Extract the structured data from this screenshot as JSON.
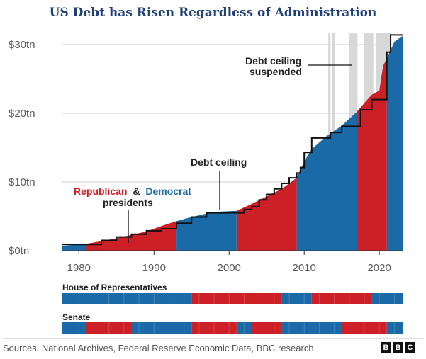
{
  "title": "US Debt has Risen Regardless of Administration",
  "source": "Sources: National Archives, Federal Reserve Economic Data, BBC research",
  "logo_letters": [
    "B",
    "B",
    "C"
  ],
  "colors": {
    "republican": "#cc1f26",
    "democrat": "#1b6aa8",
    "limit": "#111111",
    "suspended": "#d8d8d8",
    "grid": "#cccccc"
  },
  "annotations": {
    "party_rep": "Republican",
    "party_amp": "&",
    "party_dem": "Democrat",
    "party_line2": "presidents",
    "debt_ceiling": "Debt ceiling",
    "suspended_line1": "Debt ceiling",
    "suspended_line2": "suspended"
  },
  "chart_data": {
    "type": "area",
    "title": "US Debt has Risen Regardless of Administration",
    "xlabel": "",
    "ylabel": "",
    "xlim": [
      1977.8,
      2023.1
    ],
    "ylim": [
      0,
      31.5
    ],
    "x_ticks": [
      1980,
      1990,
      2000,
      2010,
      2020
    ],
    "x_tick_labels": [
      "1980",
      "1990",
      "2000",
      "2010",
      "2020"
    ],
    "y_ticks": [
      0,
      10,
      20,
      30
    ],
    "y_tick_labels": [
      "$0tn",
      "$10tn",
      "$20tn",
      "$30tn"
    ],
    "grid": true,
    "debt": {
      "x": [
        1977.8,
        1979,
        1981,
        1983,
        1985,
        1987,
        1989,
        1991,
        1993,
        1995,
        1997,
        1999,
        2001,
        2003,
        2005,
        2007,
        2009,
        2010,
        2011,
        2013,
        2015,
        2017,
        2018,
        2019,
        2020,
        2020.5,
        2021,
        2022,
        2023
      ],
      "y": [
        0.7,
        0.8,
        1.0,
        1.4,
        1.8,
        2.3,
        2.8,
        3.6,
        4.3,
        4.9,
        5.4,
        5.7,
        5.8,
        6.8,
        7.9,
        9.0,
        10.6,
        13.0,
        14.8,
        16.7,
        18.2,
        20.2,
        21.5,
        22.7,
        23.3,
        26.9,
        28.0,
        30.4,
        31.2
      ]
    },
    "presidents": [
      {
        "start": 1977.8,
        "end": 1981.0,
        "party": "Democrat"
      },
      {
        "start": 1981.0,
        "end": 1993.0,
        "party": "Republican"
      },
      {
        "start": 1993.0,
        "end": 2001.0,
        "party": "Democrat"
      },
      {
        "start": 2001.0,
        "end": 2009.0,
        "party": "Republican"
      },
      {
        "start": 2009.0,
        "end": 2017.0,
        "party": "Democrat"
      },
      {
        "start": 2017.0,
        "end": 2021.0,
        "party": "Republican"
      },
      {
        "start": 2021.0,
        "end": 2023.1,
        "party": "Democrat"
      }
    ],
    "debt_ceiling": {
      "x": [
        1977.8,
        1983,
        1985,
        1987,
        1989,
        1991,
        1993,
        1995,
        1997,
        2002,
        2003,
        2004,
        2005,
        2006,
        2007,
        2008,
        2009,
        2009.5,
        2010,
        2011,
        2013.5,
        2015,
        2017.5,
        2019,
        2021,
        2021.5,
        2022.2
      ],
      "y": [
        0.9,
        1.5,
        2.0,
        2.4,
        2.9,
        3.2,
        4.0,
        4.9,
        5.5,
        6.0,
        6.4,
        7.4,
        8.2,
        9.0,
        9.8,
        10.6,
        11.3,
        12.1,
        14.3,
        16.4,
        17.2,
        18.1,
        20.5,
        22.0,
        28.9,
        31.4,
        31.4
      ]
    },
    "suspended_periods": [
      [
        2013.2,
        2013.5
      ],
      [
        2013.7,
        2014.1
      ],
      [
        2016.0,
        2017.1
      ],
      [
        2018.0,
        2019.2
      ],
      [
        2019.6,
        2021.6
      ]
    ],
    "house_of_representatives": {
      "label": "House of Representatives",
      "segments": [
        {
          "start": 1977.8,
          "end": 1995.0,
          "party": "Democrat"
        },
        {
          "start": 1995.0,
          "end": 2007.0,
          "party": "Republican"
        },
        {
          "start": 2007.0,
          "end": 2011.0,
          "party": "Democrat"
        },
        {
          "start": 2011.0,
          "end": 2019.0,
          "party": "Republican"
        },
        {
          "start": 2019.0,
          "end": 2023.1,
          "party": "Democrat"
        }
      ]
    },
    "senate": {
      "label": "Senate",
      "segments": [
        {
          "start": 1977.8,
          "end": 1981.0,
          "party": "Democrat"
        },
        {
          "start": 1981.0,
          "end": 1987.0,
          "party": "Republican"
        },
        {
          "start": 1987.0,
          "end": 1995.0,
          "party": "Democrat"
        },
        {
          "start": 1995.0,
          "end": 2001.0,
          "party": "Republican"
        },
        {
          "start": 2001.0,
          "end": 2003.0,
          "party": "Democrat"
        },
        {
          "start": 2003.0,
          "end": 2007.0,
          "party": "Republican"
        },
        {
          "start": 2007.0,
          "end": 2015.0,
          "party": "Democrat"
        },
        {
          "start": 2015.0,
          "end": 2021.0,
          "party": "Republican"
        },
        {
          "start": 2021.0,
          "end": 2023.1,
          "party": "Democrat"
        }
      ]
    }
  }
}
